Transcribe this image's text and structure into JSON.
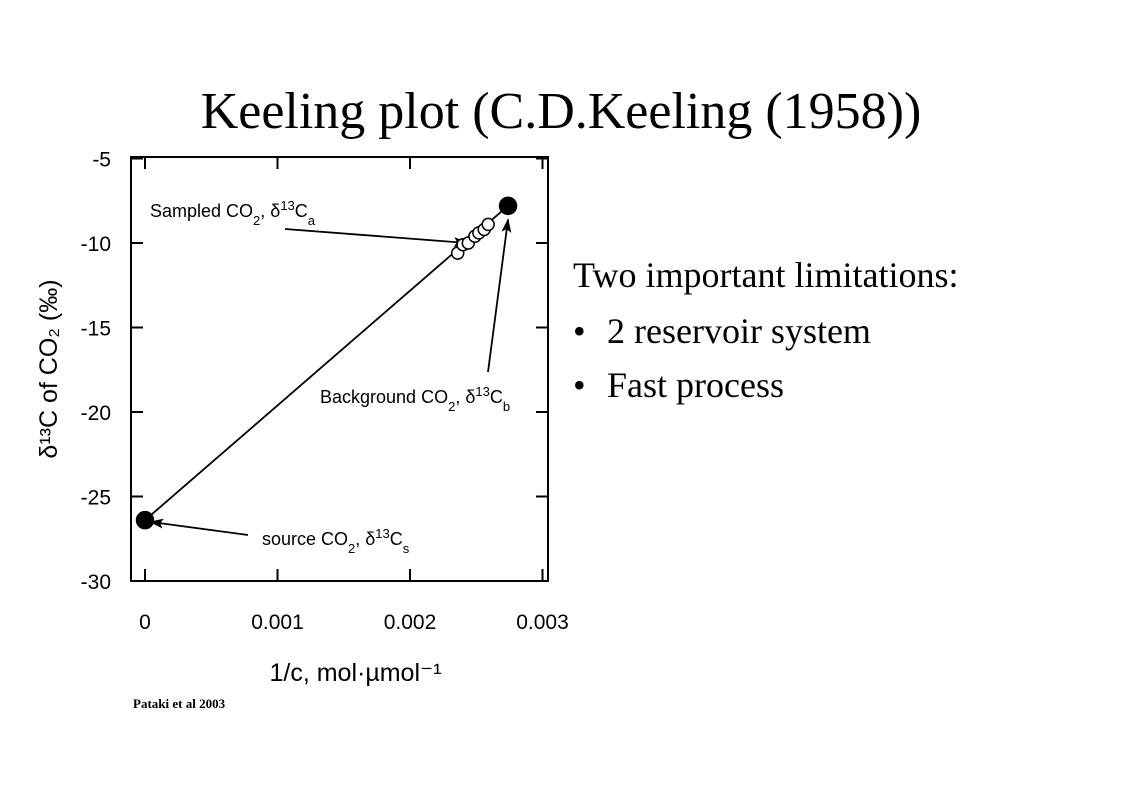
{
  "slide": {
    "title": "Keeling plot (C.D.Keeling (1958))",
    "limitations_heading": "Two important limitations:",
    "limitations": [
      "2 reservoir system",
      "Fast process"
    ],
    "citation": "Pataki et al 2003"
  },
  "chart_data": {
    "type": "scatter",
    "title": "",
    "xlabel": "1/c, mol·µmol⁻¹",
    "ylabel": "δ¹³C of CO₂ (‰)",
    "xlim": [
      0,
      0.003
    ],
    "ylim": [
      -30,
      -5
    ],
    "x_ticks": [
      "0",
      "0.001",
      "0.002",
      "0.003"
    ],
    "x_tick_values": [
      0,
      0.001,
      0.002,
      0.003
    ],
    "y_ticks": [
      "-5",
      "-10",
      "-15",
      "-20",
      "-25",
      "-30"
    ],
    "y_tick_values": [
      -5,
      -10,
      -15,
      -20,
      -25,
      -30
    ],
    "grid": false,
    "series": [
      {
        "marker": "open-circle",
        "x": [
          0.00236,
          0.0024,
          0.00244,
          0.00249,
          0.00252,
          0.00256,
          0.00259
        ],
        "y": [
          -10.6,
          -10.1,
          -10.0,
          -9.6,
          -9.4,
          -9.2,
          -8.9
        ]
      },
      {
        "marker": "filled-circle",
        "x": [
          0.0,
          0.00274
        ],
        "y": [
          -26.4,
          -7.8
        ]
      }
    ],
    "regression_line": {
      "x": [
        0.0,
        0.00274
      ],
      "y": [
        -26.4,
        -7.8
      ]
    },
    "annotations": [
      {
        "name": "sampled",
        "label": "Sampled CO",
        "sub": "2",
        "mid": ", δ",
        "sup": "13",
        "tail": "C",
        "tailsub": "a",
        "point": [
          0.00243,
          -10.0
        ]
      },
      {
        "name": "background",
        "label": "Background CO",
        "sub": "2",
        "mid": ", δ",
        "sup": "13",
        "tail": "C",
        "tailsub": "b",
        "point": [
          0.00274,
          -8.6
        ]
      },
      {
        "name": "source",
        "label": "source CO",
        "sub": "2",
        "mid": ", δ",
        "sup": "13",
        "tail": "C",
        "tailsub": "s",
        "point": [
          4e-05,
          -26.5
        ]
      }
    ],
    "colors": {
      "axes": "#000000",
      "open_marker_fill": "#ffffff",
      "filled_marker": "#000000"
    }
  }
}
